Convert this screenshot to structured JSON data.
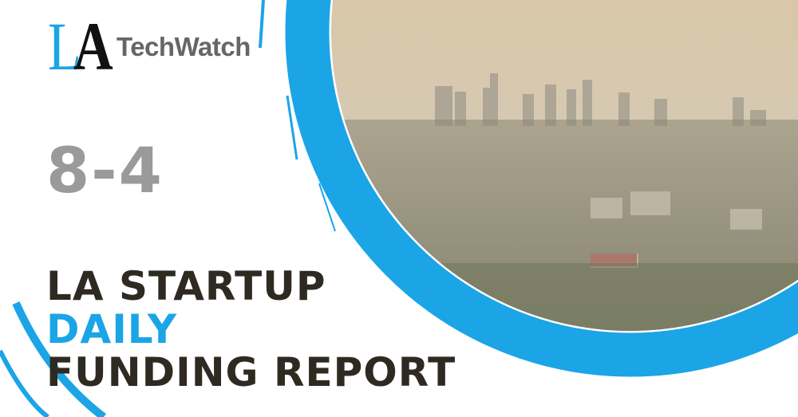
{
  "logo": {
    "letters": "LA",
    "name": "TechWatch"
  },
  "date": "8-4",
  "headline": {
    "line1": "LA STARTUP",
    "line2": "DAILY",
    "line3": "FUNDING REPORT"
  },
  "colors": {
    "accent": "#1ba5e6",
    "headline": "#2e2a22",
    "date": "#9a9a9a",
    "logo_text": "#666666"
  }
}
